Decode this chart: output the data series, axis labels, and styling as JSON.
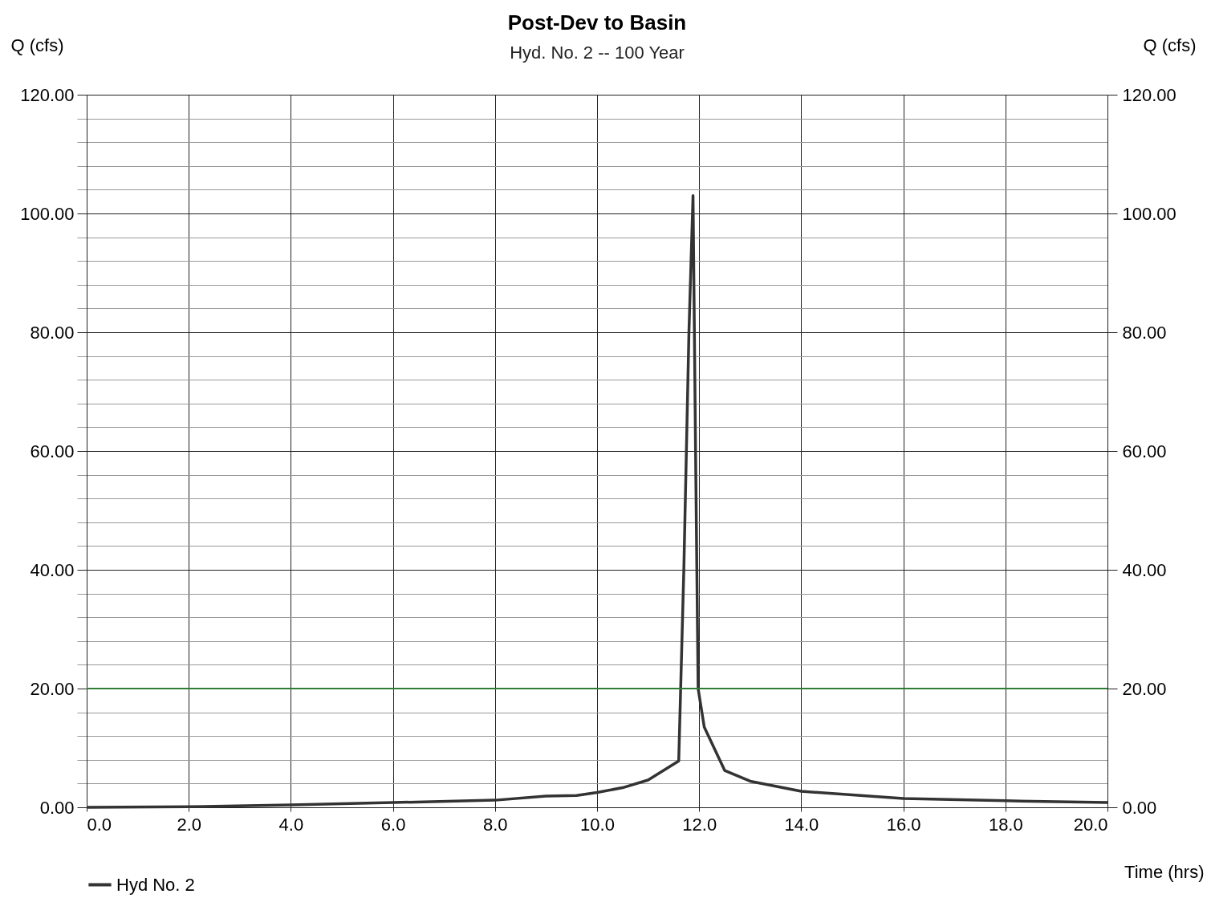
{
  "chart_data": {
    "type": "line",
    "title": "Post-Dev to Basin",
    "subtitle": "Hyd. No. 2 -- 100 Year",
    "xlabel": "Time (hrs)",
    "ylabel": "Q (cfs)",
    "y2label": "Q (cfs)",
    "series": [
      {
        "name": "Hyd No. 2",
        "color": "#333333",
        "x": [
          0,
          2,
          4,
          6,
          8,
          9,
          9.6,
          10,
          10.5,
          11,
          11.6,
          11.7,
          11.8,
          11.88,
          11.93,
          11.98,
          12.1,
          12.5,
          13,
          14,
          16,
          18,
          20
        ],
        "values": [
          0,
          0.1,
          0.4,
          0.8,
          1.2,
          1.9,
          2.0,
          2.5,
          3.3,
          4.6,
          7.8,
          40,
          80,
          103,
          60,
          20,
          13.5,
          6.2,
          4.4,
          2.7,
          1.5,
          1.1,
          0.8
        ]
      }
    ],
    "xlim": [
      0,
      20
    ],
    "xticks": [
      {
        "value": 0,
        "label": "0.0"
      },
      {
        "value": 2,
        "label": "2.0"
      },
      {
        "value": 4,
        "label": "4.0"
      },
      {
        "value": 6,
        "label": "6.0"
      },
      {
        "value": 8,
        "label": "8.0"
      },
      {
        "value": 10,
        "label": "10.0"
      },
      {
        "value": 12,
        "label": "12.0"
      },
      {
        "value": 14,
        "label": "14.0"
      },
      {
        "value": 16,
        "label": "16.0"
      },
      {
        "value": 18,
        "label": "18.0"
      },
      {
        "value": 20,
        "label": "20.0"
      }
    ],
    "ylim": [
      0,
      120
    ],
    "yticks": [
      {
        "value": 0,
        "label": "0.00"
      },
      {
        "value": 4,
        "label": null
      },
      {
        "value": 8,
        "label": null
      },
      {
        "value": 12,
        "label": null
      },
      {
        "value": 16,
        "label": null
      },
      {
        "value": 20,
        "label": "20.00"
      },
      {
        "value": 24,
        "label": null
      },
      {
        "value": 28,
        "label": null
      },
      {
        "value": 32,
        "label": null
      },
      {
        "value": 36,
        "label": null
      },
      {
        "value": 40,
        "label": "40.00"
      },
      {
        "value": 44,
        "label": null
      },
      {
        "value": 48,
        "label": null
      },
      {
        "value": 52,
        "label": null
      },
      {
        "value": 56,
        "label": null
      },
      {
        "value": 60,
        "label": "60.00"
      },
      {
        "value": 64,
        "label": null
      },
      {
        "value": 68,
        "label": null
      },
      {
        "value": 72,
        "label": null
      },
      {
        "value": 76,
        "label": null
      },
      {
        "value": 80,
        "label": "80.00"
      },
      {
        "value": 84,
        "label": null
      },
      {
        "value": 88,
        "label": null
      },
      {
        "value": 92,
        "label": null
      },
      {
        "value": 96,
        "label": null
      },
      {
        "value": 100,
        "label": "100.00"
      },
      {
        "value": 104,
        "label": null
      },
      {
        "value": 108,
        "label": null
      },
      {
        "value": 112,
        "label": null
      },
      {
        "value": 116,
        "label": null
      },
      {
        "value": 120,
        "label": "120.00"
      }
    ],
    "y2lim": [
      0,
      120
    ],
    "y2ticks": [
      {
        "value": 0,
        "label": "0.00"
      },
      {
        "value": 20,
        "label": "20.00"
      },
      {
        "value": 40,
        "label": "40.00"
      },
      {
        "value": 60,
        "label": "60.00"
      },
      {
        "value": 80,
        "label": "80.00"
      },
      {
        "value": 100,
        "label": "100.00"
      },
      {
        "value": 120,
        "label": "120.00"
      }
    ],
    "ref_lines": [
      {
        "axis": "y",
        "value": 20,
        "color": "#2e7d32"
      }
    ],
    "grid": true,
    "legend": "bottom left",
    "marker": "none",
    "line_style": "solid"
  }
}
